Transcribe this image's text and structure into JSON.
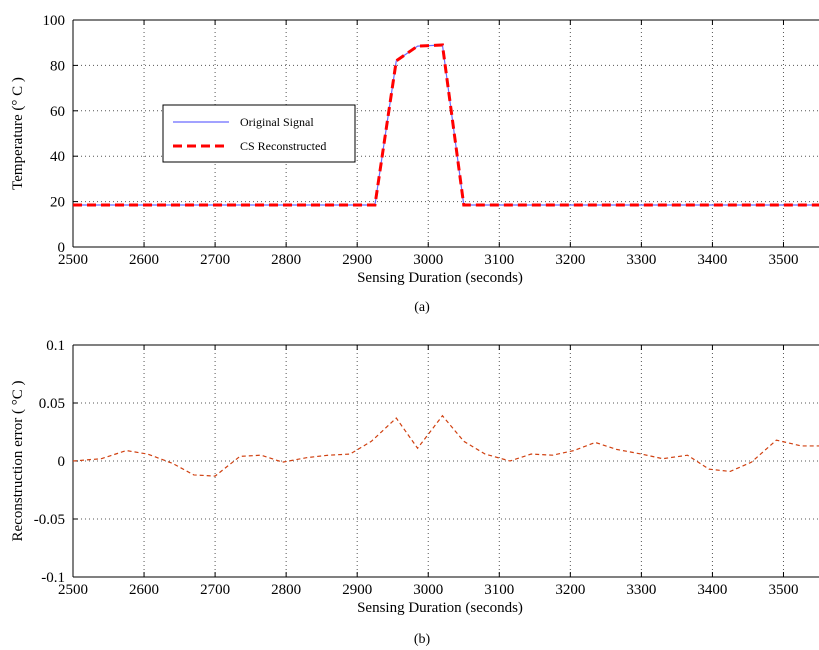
{
  "chart_data": [
    {
      "type": "line",
      "xlabel": "Sensing Duration (seconds)",
      "ylabel": "Temperature (° C    )",
      "caption": "(a)",
      "xlim": [
        2500,
        3550
      ],
      "ylim": [
        0,
        100
      ],
      "xticks": [
        2500,
        2600,
        2700,
        2800,
        2900,
        3000,
        3100,
        3200,
        3300,
        3400,
        3500
      ],
      "yticks": [
        0,
        20,
        40,
        60,
        80,
        100
      ],
      "grid": true,
      "legend": {
        "placement": "upper-left",
        "entries": [
          "Original Signal",
          "CS Reconstructed"
        ]
      },
      "series": [
        {
          "name": "Original Signal",
          "color": "#6b6bff",
          "style": "solid",
          "x": [
            2500,
            2925,
            2955,
            2985,
            3020,
            3050,
            3550
          ],
          "y": [
            18.5,
            18.5,
            82,
            88.5,
            89,
            18.5,
            18.5
          ]
        },
        {
          "name": "CS Reconstructed",
          "color": "#ff0000",
          "style": "dashed",
          "x": [
            2500,
            2925,
            2955,
            2985,
            3020,
            3050,
            3550
          ],
          "y": [
            18.5,
            18.5,
            82,
            88.5,
            89,
            18.5,
            18.5
          ]
        }
      ]
    },
    {
      "type": "line",
      "xlabel": "Sensing Duration (seconds)",
      "ylabel": "Reconstruction error ( °C    )",
      "caption": "(b)",
      "xlim": [
        2500,
        3550
      ],
      "ylim": [
        -0.1,
        0.1
      ],
      "xticks": [
        2500,
        2600,
        2700,
        2800,
        2900,
        3000,
        3100,
        3200,
        3300,
        3400,
        3500
      ],
      "yticks": [
        -0.1,
        -0.05,
        0,
        0.05,
        0.1
      ],
      "ytick_labels": [
        "-0.1",
        "-0.05",
        "0",
        "0.05",
        "0.1"
      ],
      "grid": true,
      "series": [
        {
          "color": "#d04010",
          "style": "dashed",
          "x": [
            2500,
            2540,
            2575,
            2605,
            2640,
            2670,
            2700,
            2735,
            2765,
            2795,
            2830,
            2860,
            2890,
            2920,
            2955,
            2985,
            3020,
            3050,
            3080,
            3115,
            3145,
            3175,
            3205,
            3235,
            3265,
            3300,
            3330,
            3365,
            3395,
            3425,
            3455,
            3490,
            3525,
            3550
          ],
          "y": [
            0.0,
            0.002,
            0.009,
            0.006,
            -0.002,
            -0.012,
            -0.013,
            0.004,
            0.005,
            -0.001,
            0.003,
            0.005,
            0.006,
            0.017,
            0.037,
            0.011,
            0.039,
            0.017,
            0.006,
            0.0,
            0.006,
            0.005,
            0.009,
            0.016,
            0.01,
            0.006,
            0.002,
            0.005,
            -0.007,
            -0.009,
            -0.001,
            0.018,
            0.013,
            0.013
          ]
        }
      ]
    }
  ]
}
